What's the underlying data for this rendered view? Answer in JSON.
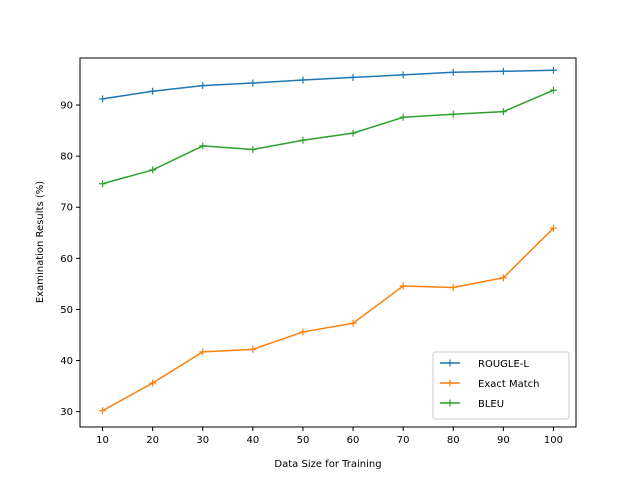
{
  "chart_data": {
    "type": "line",
    "title": "",
    "xlabel": "Data Size for Training",
    "ylabel": "Examination Results (%)",
    "x": [
      10,
      20,
      30,
      40,
      50,
      60,
      70,
      80,
      90,
      100
    ],
    "xlim": [
      5.5,
      104.5
    ],
    "ylim": [
      27,
      99.2
    ],
    "xticks": [
      10,
      20,
      30,
      40,
      50,
      60,
      70,
      80,
      90,
      100
    ],
    "yticks": [
      30,
      40,
      50,
      60,
      70,
      80,
      90
    ],
    "grid": false,
    "legend_position": "lower right",
    "marker": "+",
    "series": [
      {
        "name": "ROUGLE-L",
        "color": "#1f77b4",
        "values": [
          91.2,
          92.7,
          93.8,
          94.3,
          94.9,
          95.4,
          95.9,
          96.4,
          96.6,
          96.8
        ]
      },
      {
        "name": "Exact Match",
        "color": "#ff7f0e",
        "values": [
          30.2,
          35.6,
          41.7,
          42.2,
          45.6,
          47.3,
          54.6,
          54.3,
          56.2,
          65.9
        ]
      },
      {
        "name": "BLEU",
        "color": "#2ca02c",
        "values": [
          74.6,
          77.3,
          82.0,
          81.3,
          83.1,
          84.5,
          87.6,
          88.2,
          88.7,
          92.9
        ]
      }
    ]
  }
}
